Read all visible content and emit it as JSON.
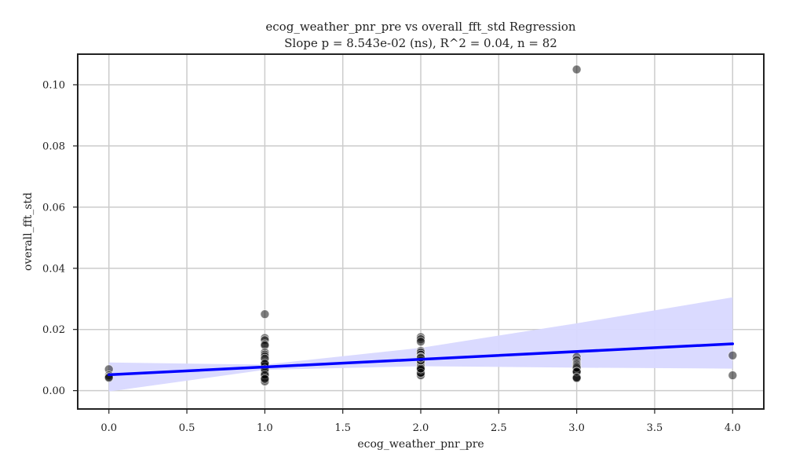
{
  "chart_data": {
    "type": "scatter",
    "title": "ecog_weather_pnr_pre vs overall_fft_std Regression",
    "subtitle": "Slope p = 8.543e-02 (ns), R^2 = 0.04, n = 82",
    "xlabel": "ecog_weather_pnr_pre",
    "ylabel": "overall_fft_std",
    "xlim": [
      -0.2,
      4.2
    ],
    "ylim": [
      -0.006,
      0.11
    ],
    "x_ticks": [
      0.0,
      0.5,
      1.0,
      1.5,
      2.0,
      2.5,
      3.0,
      3.5,
      4.0
    ],
    "x_tick_labels": [
      "0.0",
      "0.5",
      "1.0",
      "1.5",
      "2.0",
      "2.5",
      "3.0",
      "3.5",
      "4.0"
    ],
    "y_ticks": [
      0.0,
      0.02,
      0.04,
      0.06,
      0.08,
      0.1
    ],
    "y_tick_labels": [
      "0.00",
      "0.02",
      "0.04",
      "0.06",
      "0.08",
      "0.10"
    ],
    "grid": true,
    "points": [
      {
        "x": 0,
        "y": 0.007
      },
      {
        "x": 0,
        "y": 0.005
      },
      {
        "x": 0,
        "y": 0.0045
      },
      {
        "x": 0,
        "y": 0.0042
      },
      {
        "x": 1,
        "y": 0.025
      },
      {
        "x": 1,
        "y": 0.0172
      },
      {
        "x": 1,
        "y": 0.0165
      },
      {
        "x": 1,
        "y": 0.0152
      },
      {
        "x": 1,
        "y": 0.0148
      },
      {
        "x": 1,
        "y": 0.0125
      },
      {
        "x": 1,
        "y": 0.0118
      },
      {
        "x": 1,
        "y": 0.0112
      },
      {
        "x": 1,
        "y": 0.01
      },
      {
        "x": 1,
        "y": 0.0095
      },
      {
        "x": 1,
        "y": 0.009
      },
      {
        "x": 1,
        "y": 0.0085
      },
      {
        "x": 1,
        "y": 0.008
      },
      {
        "x": 1,
        "y": 0.0076
      },
      {
        "x": 1,
        "y": 0.0072
      },
      {
        "x": 1,
        "y": 0.0068
      },
      {
        "x": 1,
        "y": 0.0065
      },
      {
        "x": 1,
        "y": 0.006
      },
      {
        "x": 1,
        "y": 0.0055
      },
      {
        "x": 1,
        "y": 0.005
      },
      {
        "x": 1,
        "y": 0.0045
      },
      {
        "x": 1,
        "y": 0.004
      },
      {
        "x": 1,
        "y": 0.0035
      },
      {
        "x": 1,
        "y": 0.003
      },
      {
        "x": 1,
        "y": 0.0082
      },
      {
        "x": 1,
        "y": 0.0078
      },
      {
        "x": 1,
        "y": 0.0062
      },
      {
        "x": 1,
        "y": 0.0058
      },
      {
        "x": 1,
        "y": 0.0048
      },
      {
        "x": 1,
        "y": 0.0042
      },
      {
        "x": 1,
        "y": 0.0092
      },
      {
        "x": 1,
        "y": 0.0105
      },
      {
        "x": 1,
        "y": 0.0088
      },
      {
        "x": 1,
        "y": 0.007
      },
      {
        "x": 1,
        "y": 0.0052
      },
      {
        "x": 1,
        "y": 0.0038
      },
      {
        "x": 2,
        "y": 0.0175
      },
      {
        "x": 2,
        "y": 0.0168
      },
      {
        "x": 2,
        "y": 0.016
      },
      {
        "x": 2,
        "y": 0.013
      },
      {
        "x": 2,
        "y": 0.0125
      },
      {
        "x": 2,
        "y": 0.0118
      },
      {
        "x": 2,
        "y": 0.011
      },
      {
        "x": 2,
        "y": 0.0105
      },
      {
        "x": 2,
        "y": 0.01
      },
      {
        "x": 2,
        "y": 0.0095
      },
      {
        "x": 2,
        "y": 0.009
      },
      {
        "x": 2,
        "y": 0.0085
      },
      {
        "x": 2,
        "y": 0.008
      },
      {
        "x": 2,
        "y": 0.0075
      },
      {
        "x": 2,
        "y": 0.007
      },
      {
        "x": 2,
        "y": 0.0065
      },
      {
        "x": 2,
        "y": 0.006
      },
      {
        "x": 2,
        "y": 0.0055
      },
      {
        "x": 2,
        "y": 0.005
      },
      {
        "x": 2,
        "y": 0.0088
      },
      {
        "x": 2,
        "y": 0.0078
      },
      {
        "x": 2,
        "y": 0.0068
      },
      {
        "x": 2,
        "y": 0.0058
      },
      {
        "x": 2,
        "y": 0.0098
      },
      {
        "x": 2,
        "y": 0.0108
      },
      {
        "x": 2,
        "y": 0.0072
      },
      {
        "x": 3,
        "y": 0.105
      },
      {
        "x": 3,
        "y": 0.011
      },
      {
        "x": 3,
        "y": 0.01
      },
      {
        "x": 3,
        "y": 0.009
      },
      {
        "x": 3,
        "y": 0.0085
      },
      {
        "x": 3,
        "y": 0.008
      },
      {
        "x": 3,
        "y": 0.007
      },
      {
        "x": 3,
        "y": 0.0065
      },
      {
        "x": 3,
        "y": 0.006
      },
      {
        "x": 3,
        "y": 0.0045
      },
      {
        "x": 3,
        "y": 0.004
      },
      {
        "x": 3,
        "y": 0.0075
      },
      {
        "x": 3,
        "y": 0.0062
      },
      {
        "x": 3,
        "y": 0.0042
      },
      {
        "x": 4,
        "y": 0.0115
      },
      {
        "x": 4,
        "y": 0.005
      }
    ],
    "regression": {
      "x_range": [
        0,
        4
      ],
      "y_at_start": 0.0052,
      "y_at_end": 0.0153,
      "ci_upper": [
        [
          0,
          0.0092
        ],
        [
          1,
          0.0085
        ],
        [
          2,
          0.014
        ],
        [
          3,
          0.022
        ],
        [
          4,
          0.0305
        ]
      ],
      "ci_lower": [
        [
          0,
          -0.0003
        ],
        [
          1,
          0.0068
        ],
        [
          2,
          0.008
        ],
        [
          3,
          0.0075
        ],
        [
          4,
          0.0072
        ]
      ]
    },
    "colors": {
      "points": "#000000",
      "regression_line": "#0000ff",
      "ci_band": "#d8d8ff",
      "grid": "#cccccc",
      "frame": "#222222"
    }
  }
}
